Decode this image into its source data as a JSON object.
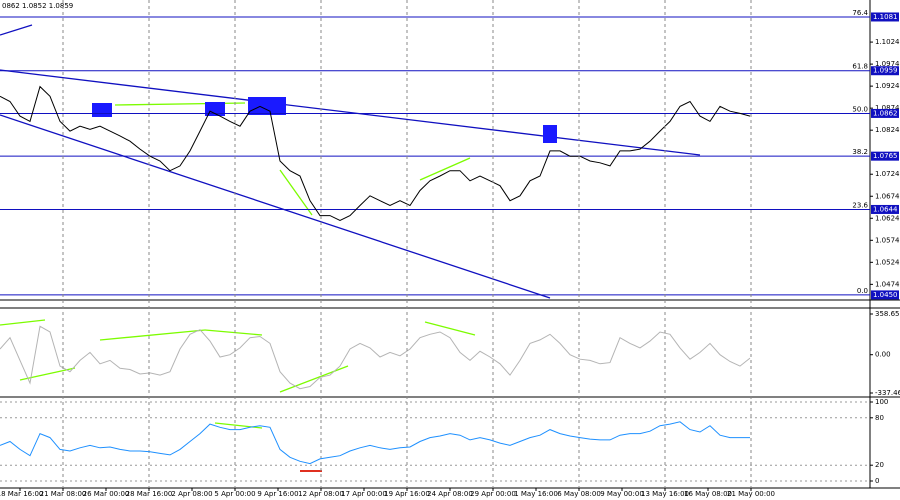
{
  "chart_data": [
    {
      "type": "line",
      "header": "0862 1.0852 1.0859",
      "color": "#000000",
      "x": [
        0,
        1,
        2,
        3,
        4,
        5,
        6,
        7,
        8,
        9,
        10,
        11,
        12,
        13,
        14,
        15,
        16,
        17,
        18,
        19,
        20,
        21,
        22,
        23,
        24,
        25,
        26,
        27,
        28,
        29,
        30,
        31,
        32,
        33,
        34,
        35,
        36,
        37,
        38,
        39,
        40,
        41,
        42,
        43,
        44,
        45,
        46,
        47,
        48,
        49,
        50,
        51,
        52,
        53,
        54,
        55,
        56,
        57,
        58,
        59,
        60,
        61,
        62,
        63,
        64,
        65,
        66,
        67,
        68,
        69,
        70,
        71,
        72,
        73,
        74,
        75
      ],
      "values": [
        1.0901,
        1.0889,
        1.0856,
        1.0844,
        1.0923,
        1.0901,
        1.0844,
        1.0822,
        1.0833,
        1.0826,
        1.0833,
        1.0822,
        1.0811,
        1.0799,
        1.0781,
        1.0765,
        1.0754,
        1.0732,
        1.0743,
        1.0777,
        1.0822,
        1.0867,
        1.0856,
        1.0844,
        1.0833,
        1.0867,
        1.0878,
        1.0867,
        1.0754,
        1.0732,
        1.072,
        1.0664,
        1.063,
        1.063,
        1.0619,
        1.063,
        1.0653,
        1.0675,
        1.0664,
        1.0653,
        1.0664,
        1.0653,
        1.0687,
        1.0709,
        1.072,
        1.0732,
        1.0732,
        1.0709,
        1.072,
        1.0709,
        1.0698,
        1.0664,
        1.0675,
        1.0709,
        1.072,
        1.0777,
        1.0777,
        1.0765,
        1.0765,
        1.0754,
        1.075,
        1.0743,
        1.0777,
        1.0777,
        1.0781,
        1.0799,
        1.0822,
        1.0844,
        1.0878,
        1.0889,
        1.0856,
        1.0844,
        1.0878,
        1.0867,
        1.0862,
        1.0856
      ],
      "xlim": [
        0,
        87
      ],
      "ylim": [
        1.0443,
        1.1115
      ],
      "yticks": [
        1.1024,
        1.0974,
        1.0924,
        1.0874,
        1.0824,
        1.0724,
        1.0674,
        1.0624,
        1.0574,
        1.0524,
        1.0474
      ],
      "levels": [
        {
          "value": 1.1081,
          "fib": "76.4"
        },
        {
          "value": 1.0959,
          "fib": "61.8"
        },
        {
          "value": 1.0862,
          "fib": "50.0"
        },
        {
          "value": 1.0765,
          "fib": "38.2"
        },
        {
          "value": 1.0644,
          "fib": "23.6"
        },
        {
          "value": 1.045,
          "label": "1.0450",
          "fib": "0.0"
        }
      ]
    },
    {
      "type": "line",
      "color": "#b4b4b4",
      "x": [
        0,
        1,
        2,
        3,
        4,
        5,
        6,
        7,
        8,
        9,
        10,
        11,
        12,
        13,
        14,
        15,
        16,
        17,
        18,
        19,
        20,
        21,
        22,
        23,
        24,
        25,
        26,
        27,
        28,
        29,
        30,
        31,
        32,
        33,
        34,
        35,
        36,
        37,
        38,
        39,
        40,
        41,
        42,
        43,
        44,
        45,
        46,
        47,
        48,
        49,
        50,
        51,
        52,
        53,
        54,
        55,
        56,
        57,
        58,
        59,
        60,
        61,
        62,
        63,
        64,
        65,
        66,
        67,
        68,
        69,
        70,
        71,
        72,
        73,
        74,
        75
      ],
      "values": [
        50,
        150,
        -50,
        -250,
        250,
        200,
        -100,
        -150,
        -50,
        20,
        -80,
        -50,
        -120,
        -130,
        -170,
        -160,
        -180,
        -150,
        50,
        180,
        220,
        120,
        -20,
        0,
        60,
        150,
        160,
        100,
        -150,
        -250,
        -300,
        -280,
        -200,
        -180,
        -100,
        50,
        100,
        60,
        -20,
        20,
        -10,
        50,
        150,
        180,
        200,
        150,
        20,
        -50,
        30,
        -20,
        -80,
        -180,
        -50,
        100,
        130,
        180,
        100,
        0,
        -40,
        -50,
        -80,
        -70,
        150,
        100,
        60,
        120,
        200,
        180,
        60,
        -40,
        20,
        100,
        0,
        -60,
        -100,
        -30
      ],
      "xlim": [
        0,
        87
      ],
      "ylim": [
        -337.462,
        358.6587
      ],
      "yticks": [
        358.6587,
        {
          "value": 0,
          "label": "0.00"
        },
        -337.462
      ]
    },
    {
      "type": "line",
      "color": "#1e90ff",
      "x": [
        0,
        1,
        2,
        3,
        4,
        5,
        6,
        7,
        8,
        9,
        10,
        11,
        12,
        13,
        14,
        15,
        16,
        17,
        18,
        19,
        20,
        21,
        22,
        23,
        24,
        25,
        26,
        27,
        28,
        29,
        30,
        31,
        32,
        33,
        34,
        35,
        36,
        37,
        38,
        39,
        40,
        41,
        42,
        43,
        44,
        45,
        46,
        47,
        48,
        49,
        50,
        51,
        52,
        53,
        54,
        55,
        56,
        57,
        58,
        59,
        60,
        61,
        62,
        63,
        64,
        65,
        66,
        67,
        68,
        69,
        70,
        71,
        72,
        73,
        74,
        75
      ],
      "values": [
        45,
        50,
        40,
        32,
        60,
        55,
        40,
        38,
        42,
        45,
        42,
        43,
        40,
        38,
        38,
        37,
        35,
        33,
        40,
        50,
        60,
        72,
        68,
        65,
        65,
        68,
        70,
        68,
        40,
        30,
        25,
        22,
        28,
        30,
        32,
        38,
        42,
        45,
        42,
        40,
        42,
        43,
        50,
        55,
        57,
        60,
        58,
        52,
        55,
        52,
        48,
        45,
        50,
        55,
        58,
        65,
        60,
        57,
        55,
        53,
        52,
        52,
        58,
        60,
        60,
        63,
        70,
        72,
        75,
        65,
        62,
        70,
        58,
        55,
        55,
        55
      ],
      "xlim": [
        0,
        87
      ],
      "ylim": [
        0,
        100
      ],
      "yticks": [
        100,
        80,
        20,
        0
      ],
      "xticks": [
        {
          "value": 2,
          "label": "18 Mar 16:00"
        },
        {
          "value": 6.3,
          "label": "21 Mar 08:00"
        },
        {
          "value": 10.6,
          "label": "26 Mar 00:00"
        },
        {
          "value": 14.9,
          "label": "28 Mar 16:00"
        },
        {
          "value": 19.2,
          "label": "2 Apr 08:00"
        },
        {
          "value": 23.5,
          "label": "5 Apr 00:00"
        },
        {
          "value": 27.8,
          "label": "9 Apr 16:00"
        },
        {
          "value": 32.1,
          "label": "12 Apr 08:00"
        },
        {
          "value": 36.4,
          "label": "17 Apr 00:00"
        },
        {
          "value": 40.7,
          "label": "19 Apr 16:00"
        },
        {
          "value": 45,
          "label": "24 Apr 08:00"
        },
        {
          "value": 49.3,
          "label": "29 Apr 00:00"
        },
        {
          "value": 53.6,
          "label": "1 May 16:00"
        },
        {
          "value": 57.9,
          "label": "6 May 08:00"
        },
        {
          "value": 62.2,
          "label": "9 May 00:00"
        },
        {
          "value": 66.5,
          "label": "13 May 16:00"
        },
        {
          "value": 70.8,
          "label": "16 May 08:00"
        },
        {
          "value": 75.1,
          "label": "21 May 00:00"
        }
      ]
    }
  ]
}
